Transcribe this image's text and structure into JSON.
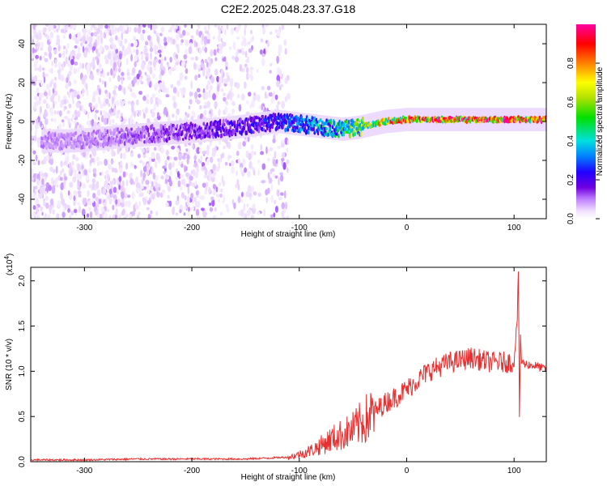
{
  "chart_data": [
    {
      "type": "heatmap",
      "title": "C2E2.2025.048.23.37.G18",
      "xlabel": "Height of straight line (km)",
      "ylabel": "Frequency (Hz)",
      "xlim": [
        -350,
        130
      ],
      "ylim": [
        -50,
        50
      ],
      "x_ticks": [
        -300,
        -200,
        -100,
        0,
        100
      ],
      "y_ticks": [
        -40,
        -20,
        0,
        20,
        40
      ],
      "colorbar": {
        "label": "Normalized spectral amplitude",
        "range": [
          0,
          1
        ],
        "ticks": [
          0.0,
          0.2,
          0.4,
          0.6,
          0.8
        ],
        "colormap": [
          "#ffffff",
          "#e6ccff",
          "#b066ff",
          "#7000e0",
          "#2000ff",
          "#0080ff",
          "#00e0e0",
          "#00e000",
          "#b0e000",
          "#ffff00",
          "#ff8000",
          "#ff0000",
          "#ff00a0"
        ]
      },
      "ridge": [
        {
          "x": -310,
          "y": -10,
          "amp": 0.15
        },
        {
          "x": -250,
          "y": -7,
          "amp": 0.2
        },
        {
          "x": -200,
          "y": -5,
          "amp": 0.25
        },
        {
          "x": -160,
          "y": -3,
          "amp": 0.3
        },
        {
          "x": -120,
          "y": 0,
          "amp": 0.35
        },
        {
          "x": -90,
          "y": -2,
          "amp": 0.45
        },
        {
          "x": -60,
          "y": -4,
          "amp": 0.55
        },
        {
          "x": -45,
          "y": -3,
          "amp": 0.65
        },
        {
          "x": -20,
          "y": 0,
          "amp": 0.8
        },
        {
          "x": 0,
          "y": 1,
          "amp": 0.9
        },
        {
          "x": 50,
          "y": 1,
          "amp": 0.92
        },
        {
          "x": 100,
          "y": 1,
          "amp": 0.95
        },
        {
          "x": 130,
          "y": 1,
          "amp": 0.9
        }
      ],
      "noise_region": {
        "x": [
          -350,
          -110
        ],
        "y": [
          -50,
          50
        ]
      }
    },
    {
      "type": "line",
      "xlabel": "Height of straight line (km)",
      "ylabel": "SNR (10 * v/v)",
      "y_multiplier": "(x10",
      "y_multiplier_exp": "4",
      "xlim": [
        -350,
        130
      ],
      "ylim": [
        0,
        2.15
      ],
      "x_ticks": [
        -300,
        -200,
        -100,
        0,
        100
      ],
      "y_ticks": [
        "0.0",
        "0.5",
        "1.0",
        "1.5",
        "2.0"
      ],
      "color": "#e83030",
      "x": [
        -350,
        -300,
        -250,
        -200,
        -150,
        -110,
        -100,
        -90,
        -80,
        -70,
        -60,
        -50,
        -40,
        -30,
        -20,
        -10,
        0,
        10,
        20,
        30,
        40,
        50,
        60,
        70,
        80,
        90,
        100,
        103,
        104,
        105,
        106,
        107,
        110,
        120,
        130
      ],
      "y": [
        0.02,
        0.02,
        0.03,
        0.03,
        0.03,
        0.05,
        0.08,
        0.12,
        0.18,
        0.25,
        0.3,
        0.35,
        0.45,
        0.55,
        0.65,
        0.72,
        0.8,
        0.9,
        1.0,
        1.05,
        1.1,
        1.12,
        1.15,
        1.12,
        1.1,
        1.1,
        1.1,
        1.6,
        2.1,
        0.5,
        1.4,
        1.1,
        1.08,
        1.06,
        1.02
      ]
    }
  ]
}
